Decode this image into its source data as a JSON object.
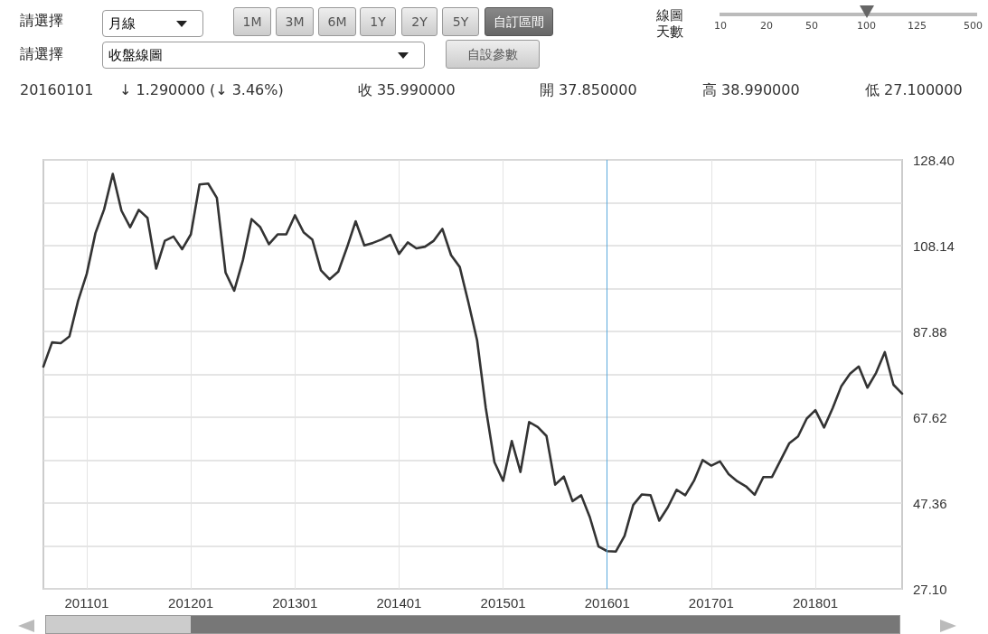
{
  "chart_data": {
    "type": "line",
    "categories": [
      null,
      null,
      null,
      null,
      null,
      "201101",
      null,
      null,
      null,
      null,
      null,
      null,
      null,
      null,
      null,
      null,
      null,
      "201201",
      null,
      null,
      null,
      null,
      null,
      null,
      null,
      null,
      null,
      null,
      null,
      "201301",
      null,
      null,
      null,
      null,
      null,
      null,
      null,
      null,
      null,
      null,
      null,
      "201401",
      null,
      null,
      null,
      null,
      null,
      null,
      null,
      null,
      null,
      null,
      null,
      "201501",
      null,
      null,
      null,
      null,
      null,
      null,
      null,
      null,
      null,
      null,
      null,
      "201601",
      null,
      null,
      null,
      null,
      null,
      null,
      null,
      null,
      null,
      null,
      null,
      "201701",
      null,
      null,
      null,
      null,
      null,
      null,
      null,
      null,
      null,
      null,
      null,
      "201801",
      null,
      null,
      null,
      null,
      null,
      null,
      null,
      null,
      null,
      null
    ],
    "series": [
      {
        "color": "#333333",
        "values": [
          79.6,
          85.3,
          85.1,
          86.7,
          95.1,
          101.5,
          111.1,
          116.7,
          125.1,
          116.4,
          112.5,
          116.6,
          114.7,
          102.7,
          109.3,
          110.3,
          107.3,
          110.8,
          122.6,
          122.8,
          119.4,
          101.8,
          97.5,
          104.7,
          114.4,
          112.5,
          108.5,
          110.8,
          110.8,
          115.3,
          111.3,
          109.6,
          102.3,
          100.2,
          102.0,
          107.7,
          113.9,
          108.2,
          108.8,
          109.6,
          110.7,
          106.2,
          108.9,
          107.5,
          107.9,
          109.3,
          112.1,
          105.9,
          103.1,
          94.7,
          85.8,
          69.8,
          57.0,
          52.6,
          62.0,
          54.7,
          66.5,
          65.3,
          63.2,
          51.7,
          53.6,
          47.8,
          49.2,
          44.0,
          37.1,
          36.0,
          35.9,
          39.6,
          46.9,
          49.4,
          49.2,
          43.2,
          46.4,
          50.5,
          49.2,
          52.6,
          57.5,
          56.2,
          57.2,
          54.2,
          52.5,
          51.3,
          49.3,
          53.5,
          53.5,
          57.5,
          61.5,
          63.1,
          67.3,
          69.3,
          65.2,
          69.8,
          75.0,
          77.9,
          79.6,
          74.6,
          78.1,
          83.0,
          75.3,
          73.2
        ]
      }
    ],
    "ylim": [
      27.1,
      128.4
    ],
    "yticks": [
      {
        "value": 27.1,
        "label": "27.10"
      },
      {
        "value": 37.23,
        "label": null
      },
      {
        "value": 47.36,
        "label": "47.36"
      },
      {
        "value": 57.49,
        "label": null
      },
      {
        "value": 67.62,
        "label": "67.62"
      },
      {
        "value": 77.75,
        "label": null
      },
      {
        "value": 87.88,
        "label": "87.88"
      },
      {
        "value": 98.01,
        "label": null
      },
      {
        "value": 108.14,
        "label": "108.14"
      },
      {
        "value": 118.27,
        "label": null
      },
      {
        "value": 128.4,
        "label": "128.40"
      }
    ],
    "ref_lines": [
      {
        "axis": "x",
        "value": "201601",
        "color": "#5aa9dc"
      }
    ],
    "grid": true,
    "marker": "none",
    "line_style": "solid",
    "annotations": [
      "請選擇",
      "月線",
      "1M",
      "3M",
      "6M",
      "1Y",
      "2Y",
      "5Y",
      "自訂區間",
      "線圖",
      "天數",
      "10",
      "20",
      "50",
      "100",
      "125",
      "500",
      "請選擇",
      "收盤線圖",
      "自設參數",
      "20160101",
      "↓ 1.290000 (↓ 3.46%)",
      "收 35.990000",
      "開 37.850000",
      "高 38.990000",
      "低 27.100000"
    ]
  }
}
